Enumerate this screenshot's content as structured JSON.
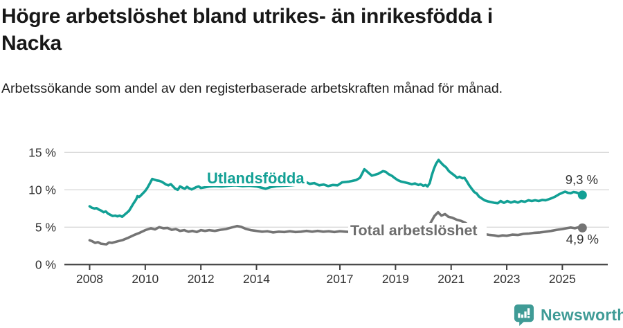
{
  "header": {
    "title_line1": "Högre arbetslöshet bland utrikes- än inrikesfödda i",
    "title_line2": "Nacka",
    "subtitle": "Arbetssökande som andel av den registerbaserade arbetskraften månad för månad."
  },
  "footer": {
    "brand": "Newsworthy",
    "logo_icon": "bar-chart-speech-bubble-icon"
  },
  "colors": {
    "accent_teal": "#12a095",
    "series_gray": "#747474",
    "series_gray_label": "#6d6d6d",
    "gridline": "#d9d9d9",
    "axis": "#3f3f3f",
    "tick_text": "#333333",
    "value_text": "#333333",
    "brand_teal": "#3f9b96",
    "title_text": "#181818",
    "background": "#ffffff"
  },
  "chart_data": {
    "type": "line",
    "title": "Högre arbetslöshet bland utrikes- än inrikesfödda i Nacka",
    "subtitle": "Arbetssökande som andel av den registerbaserade arbetskraften månad för månad.",
    "x_unit": "decimal year (monthly observations)",
    "y_unit": "percent of registered labour force",
    "xlim": [
      2008,
      2026
    ],
    "ylim": [
      0,
      15
    ],
    "grid": "horizontal",
    "legend_position": "inline-on-line",
    "number_format": "decimal comma, e.g. 9,3 %",
    "yticks": [
      {
        "value": 0,
        "label": "0 %"
      },
      {
        "value": 5,
        "label": "5 %"
      },
      {
        "value": 10,
        "label": "10 %"
      },
      {
        "value": 15,
        "label": "15 %"
      }
    ],
    "xticks": [
      {
        "value": 2008,
        "label": "2008"
      },
      {
        "value": 2010,
        "label": "2010"
      },
      {
        "value": 2012,
        "label": "2012"
      },
      {
        "value": 2014,
        "label": "2014"
      },
      {
        "value": 2017,
        "label": "2017"
      },
      {
        "value": 2019,
        "label": "2019"
      },
      {
        "value": 2021,
        "label": "2021"
      },
      {
        "value": 2023,
        "label": "2023"
      },
      {
        "value": 2025,
        "label": "2025"
      }
    ],
    "series": [
      {
        "name": "Utlandsfödda",
        "color": "#12a095",
        "label_color": "#12a095",
        "end_label": "9,3 %",
        "end_value": 9.3,
        "points": [
          [
            2008.0,
            7.8
          ],
          [
            2008.08,
            7.6
          ],
          [
            2008.17,
            7.5
          ],
          [
            2008.25,
            7.55
          ],
          [
            2008.33,
            7.35
          ],
          [
            2008.42,
            7.2
          ],
          [
            2008.5,
            7.0
          ],
          [
            2008.58,
            7.1
          ],
          [
            2008.67,
            6.8
          ],
          [
            2008.75,
            6.65
          ],
          [
            2008.83,
            6.5
          ],
          [
            2008.92,
            6.55
          ],
          [
            2009.0,
            6.45
          ],
          [
            2009.08,
            6.55
          ],
          [
            2009.17,
            6.4
          ],
          [
            2009.25,
            6.65
          ],
          [
            2009.33,
            6.9
          ],
          [
            2009.42,
            7.2
          ],
          [
            2009.5,
            7.7
          ],
          [
            2009.58,
            8.2
          ],
          [
            2009.67,
            8.7
          ],
          [
            2009.72,
            9.15
          ],
          [
            2009.78,
            9.05
          ],
          [
            2009.83,
            9.2
          ],
          [
            2009.92,
            9.55
          ],
          [
            2010.0,
            9.85
          ],
          [
            2010.08,
            10.3
          ],
          [
            2010.17,
            10.9
          ],
          [
            2010.25,
            11.45
          ],
          [
            2010.33,
            11.35
          ],
          [
            2010.42,
            11.25
          ],
          [
            2010.5,
            11.2
          ],
          [
            2010.58,
            11.1
          ],
          [
            2010.67,
            10.9
          ],
          [
            2010.75,
            10.7
          ],
          [
            2010.83,
            10.6
          ],
          [
            2010.92,
            10.75
          ],
          [
            2011.0,
            10.45
          ],
          [
            2011.08,
            10.15
          ],
          [
            2011.17,
            10.0
          ],
          [
            2011.25,
            10.45
          ],
          [
            2011.33,
            10.3
          ],
          [
            2011.42,
            10.15
          ],
          [
            2011.5,
            10.4
          ],
          [
            2011.58,
            10.2
          ],
          [
            2011.67,
            10.05
          ],
          [
            2011.75,
            10.2
          ],
          [
            2011.83,
            10.35
          ],
          [
            2011.92,
            10.45
          ],
          [
            2012.0,
            10.25
          ],
          [
            2012.17,
            10.35
          ],
          [
            2012.33,
            10.45
          ],
          [
            2012.5,
            10.5
          ],
          [
            2012.75,
            10.45
          ],
          [
            2013.0,
            10.55
          ],
          [
            2013.25,
            10.6
          ],
          [
            2013.5,
            10.5
          ],
          [
            2013.75,
            10.55
          ],
          [
            2014.0,
            10.45
          ],
          [
            2014.17,
            10.3
          ],
          [
            2014.33,
            10.15
          ],
          [
            2014.5,
            10.35
          ],
          [
            2014.75,
            10.5
          ],
          [
            2015.0,
            10.55
          ],
          [
            2015.25,
            10.6
          ],
          [
            2015.5,
            10.7
          ],
          [
            2015.67,
            10.9
          ],
          [
            2015.8,
            11.0
          ],
          [
            2015.92,
            10.8
          ],
          [
            2016.08,
            10.9
          ],
          [
            2016.25,
            10.6
          ],
          [
            2016.42,
            10.7
          ],
          [
            2016.58,
            10.5
          ],
          [
            2016.75,
            10.65
          ],
          [
            2016.92,
            10.6
          ],
          [
            2017.08,
            11.0
          ],
          [
            2017.33,
            11.1
          ],
          [
            2017.58,
            11.3
          ],
          [
            2017.72,
            11.6
          ],
          [
            2017.88,
            12.75
          ],
          [
            2017.96,
            12.5
          ],
          [
            2018.05,
            12.2
          ],
          [
            2018.15,
            11.9
          ],
          [
            2018.25,
            12.0
          ],
          [
            2018.38,
            12.15
          ],
          [
            2018.55,
            12.5
          ],
          [
            2018.65,
            12.4
          ],
          [
            2018.75,
            12.1
          ],
          [
            2018.88,
            11.85
          ],
          [
            2018.96,
            11.6
          ],
          [
            2019.08,
            11.3
          ],
          [
            2019.2,
            11.1
          ],
          [
            2019.33,
            11.0
          ],
          [
            2019.45,
            10.9
          ],
          [
            2019.58,
            10.75
          ],
          [
            2019.7,
            10.85
          ],
          [
            2019.82,
            10.65
          ],
          [
            2019.9,
            10.75
          ],
          [
            2020.0,
            10.55
          ],
          [
            2020.08,
            10.65
          ],
          [
            2020.15,
            10.45
          ],
          [
            2020.23,
            10.9
          ],
          [
            2020.3,
            11.9
          ],
          [
            2020.38,
            12.8
          ],
          [
            2020.46,
            13.5
          ],
          [
            2020.55,
            14.0
          ],
          [
            2020.63,
            13.65
          ],
          [
            2020.72,
            13.3
          ],
          [
            2020.82,
            13.0
          ],
          [
            2020.92,
            12.5
          ],
          [
            2021.02,
            12.2
          ],
          [
            2021.13,
            11.9
          ],
          [
            2021.22,
            11.6
          ],
          [
            2021.3,
            11.75
          ],
          [
            2021.4,
            11.55
          ],
          [
            2021.48,
            11.6
          ],
          [
            2021.57,
            11.1
          ],
          [
            2021.65,
            10.6
          ],
          [
            2021.75,
            10.1
          ],
          [
            2021.83,
            9.7
          ],
          [
            2021.92,
            9.5
          ],
          [
            2022.0,
            9.1
          ],
          [
            2022.1,
            8.85
          ],
          [
            2022.2,
            8.6
          ],
          [
            2022.32,
            8.45
          ],
          [
            2022.45,
            8.35
          ],
          [
            2022.57,
            8.25
          ],
          [
            2022.68,
            8.2
          ],
          [
            2022.78,
            8.5
          ],
          [
            2022.9,
            8.25
          ],
          [
            2023.02,
            8.5
          ],
          [
            2023.15,
            8.3
          ],
          [
            2023.28,
            8.45
          ],
          [
            2023.4,
            8.3
          ],
          [
            2023.52,
            8.5
          ],
          [
            2023.65,
            8.4
          ],
          [
            2023.78,
            8.6
          ],
          [
            2023.9,
            8.5
          ],
          [
            2024.02,
            8.6
          ],
          [
            2024.15,
            8.5
          ],
          [
            2024.28,
            8.65
          ],
          [
            2024.4,
            8.6
          ],
          [
            2024.52,
            8.75
          ],
          [
            2024.63,
            8.9
          ],
          [
            2024.75,
            9.1
          ],
          [
            2024.88,
            9.4
          ],
          [
            2025.0,
            9.6
          ],
          [
            2025.1,
            9.75
          ],
          [
            2025.2,
            9.6
          ],
          [
            2025.3,
            9.55
          ],
          [
            2025.4,
            9.7
          ],
          [
            2025.5,
            9.65
          ],
          [
            2025.6,
            9.5
          ],
          [
            2025.72,
            9.3
          ]
        ]
      },
      {
        "name": "Total arbetslöshet",
        "color": "#747474",
        "label_color": "#6d6d6d",
        "end_label": "4,9 %",
        "end_value": 4.9,
        "points": [
          [
            2008.0,
            3.25
          ],
          [
            2008.1,
            3.1
          ],
          [
            2008.2,
            2.9
          ],
          [
            2008.3,
            3.0
          ],
          [
            2008.4,
            2.8
          ],
          [
            2008.5,
            2.75
          ],
          [
            2008.6,
            2.7
          ],
          [
            2008.7,
            2.95
          ],
          [
            2008.8,
            2.9
          ],
          [
            2008.9,
            3.0
          ],
          [
            2009.0,
            3.1
          ],
          [
            2009.2,
            3.3
          ],
          [
            2009.4,
            3.6
          ],
          [
            2009.6,
            3.95
          ],
          [
            2009.8,
            4.25
          ],
          [
            2010.0,
            4.6
          ],
          [
            2010.2,
            4.85
          ],
          [
            2010.35,
            4.7
          ],
          [
            2010.5,
            5.0
          ],
          [
            2010.65,
            4.85
          ],
          [
            2010.8,
            4.9
          ],
          [
            2010.95,
            4.65
          ],
          [
            2011.1,
            4.75
          ],
          [
            2011.25,
            4.5
          ],
          [
            2011.4,
            4.6
          ],
          [
            2011.55,
            4.4
          ],
          [
            2011.7,
            4.5
          ],
          [
            2011.85,
            4.35
          ],
          [
            2012.0,
            4.6
          ],
          [
            2012.15,
            4.5
          ],
          [
            2012.3,
            4.6
          ],
          [
            2012.5,
            4.5
          ],
          [
            2012.7,
            4.65
          ],
          [
            2012.9,
            4.75
          ],
          [
            2013.1,
            4.95
          ],
          [
            2013.3,
            5.15
          ],
          [
            2013.45,
            5.05
          ],
          [
            2013.6,
            4.8
          ],
          [
            2013.8,
            4.6
          ],
          [
            2014.0,
            4.5
          ],
          [
            2014.2,
            4.4
          ],
          [
            2014.4,
            4.45
          ],
          [
            2014.6,
            4.3
          ],
          [
            2014.8,
            4.4
          ],
          [
            2015.0,
            4.35
          ],
          [
            2015.2,
            4.45
          ],
          [
            2015.4,
            4.35
          ],
          [
            2015.6,
            4.4
          ],
          [
            2015.8,
            4.5
          ],
          [
            2016.0,
            4.4
          ],
          [
            2016.2,
            4.5
          ],
          [
            2016.4,
            4.4
          ],
          [
            2016.6,
            4.45
          ],
          [
            2016.8,
            4.35
          ],
          [
            2017.0,
            4.45
          ],
          [
            2017.2,
            4.4
          ],
          [
            2017.4,
            4.35
          ],
          [
            2017.7,
            4.3
          ],
          [
            2018.0,
            4.35
          ],
          [
            2018.3,
            4.25
          ],
          [
            2018.6,
            4.3
          ],
          [
            2018.9,
            4.25
          ],
          [
            2019.2,
            4.3
          ],
          [
            2019.5,
            4.35
          ],
          [
            2019.8,
            4.4
          ],
          [
            2020.0,
            4.5
          ],
          [
            2020.15,
            4.8
          ],
          [
            2020.28,
            5.7
          ],
          [
            2020.4,
            6.5
          ],
          [
            2020.53,
            7.0
          ],
          [
            2020.65,
            6.55
          ],
          [
            2020.78,
            6.75
          ],
          [
            2020.9,
            6.4
          ],
          [
            2021.05,
            6.25
          ],
          [
            2021.2,
            6.0
          ],
          [
            2021.35,
            5.85
          ],
          [
            2021.5,
            5.6
          ],
          [
            2021.7,
            5.1
          ],
          [
            2021.9,
            4.6
          ],
          [
            2022.1,
            4.2
          ],
          [
            2022.25,
            4.05
          ],
          [
            2022.4,
            3.95
          ],
          [
            2022.55,
            3.9
          ],
          [
            2022.7,
            3.8
          ],
          [
            2022.85,
            3.9
          ],
          [
            2023.0,
            3.85
          ],
          [
            2023.2,
            4.0
          ],
          [
            2023.4,
            3.95
          ],
          [
            2023.6,
            4.1
          ],
          [
            2023.8,
            4.15
          ],
          [
            2024.0,
            4.25
          ],
          [
            2024.2,
            4.3
          ],
          [
            2024.4,
            4.4
          ],
          [
            2024.6,
            4.5
          ],
          [
            2024.8,
            4.65
          ],
          [
            2025.0,
            4.75
          ],
          [
            2025.15,
            4.85
          ],
          [
            2025.3,
            4.95
          ],
          [
            2025.45,
            4.85
          ],
          [
            2025.6,
            5.0
          ],
          [
            2025.72,
            4.9
          ]
        ]
      }
    ]
  }
}
